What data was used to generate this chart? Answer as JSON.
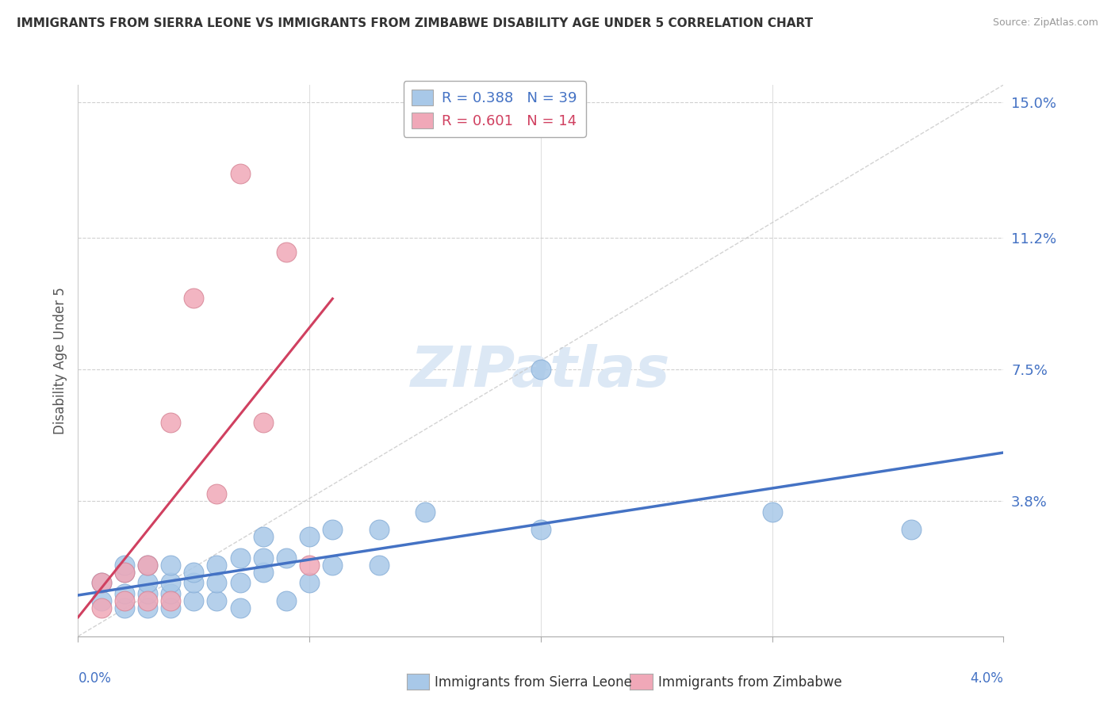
{
  "title": "IMMIGRANTS FROM SIERRA LEONE VS IMMIGRANTS FROM ZIMBABWE DISABILITY AGE UNDER 5 CORRELATION CHART",
  "source": "Source: ZipAtlas.com",
  "ylabel": "Disability Age Under 5",
  "ytick_vals": [
    0.0,
    0.038,
    0.075,
    0.112,
    0.15
  ],
  "ytick_labels": [
    "",
    "3.8%",
    "7.5%",
    "11.2%",
    "15.0%"
  ],
  "xlim": [
    0.0,
    0.04
  ],
  "ylim": [
    0.0,
    0.155
  ],
  "legend_r1": "R = 0.388",
  "legend_n1": "N = 39",
  "legend_r2": "R = 0.601",
  "legend_n2": "N = 14",
  "sierra_leone_color": "#a8c8e8",
  "zimbabwe_color": "#f0a8b8",
  "sierra_leone_line_color": "#4472c4",
  "zimbabwe_line_color": "#d04060",
  "watermark_color": "#dce8f5",
  "background_color": "#ffffff",
  "sierra_leone_x": [
    0.001,
    0.001,
    0.002,
    0.002,
    0.002,
    0.002,
    0.003,
    0.003,
    0.003,
    0.003,
    0.004,
    0.004,
    0.004,
    0.004,
    0.005,
    0.005,
    0.005,
    0.006,
    0.006,
    0.006,
    0.007,
    0.007,
    0.007,
    0.008,
    0.008,
    0.008,
    0.009,
    0.009,
    0.01,
    0.01,
    0.011,
    0.011,
    0.013,
    0.013,
    0.015,
    0.02,
    0.02,
    0.03,
    0.036
  ],
  "sierra_leone_y": [
    0.01,
    0.015,
    0.008,
    0.012,
    0.018,
    0.02,
    0.008,
    0.012,
    0.015,
    0.02,
    0.008,
    0.012,
    0.015,
    0.02,
    0.01,
    0.015,
    0.018,
    0.01,
    0.015,
    0.02,
    0.008,
    0.015,
    0.022,
    0.018,
    0.022,
    0.028,
    0.01,
    0.022,
    0.015,
    0.028,
    0.02,
    0.03,
    0.02,
    0.03,
    0.035,
    0.03,
    0.075,
    0.035,
    0.03
  ],
  "zimbabwe_x": [
    0.001,
    0.001,
    0.002,
    0.002,
    0.003,
    0.003,
    0.004,
    0.004,
    0.005,
    0.006,
    0.007,
    0.008,
    0.009,
    0.01
  ],
  "zimbabwe_y": [
    0.008,
    0.015,
    0.01,
    0.018,
    0.01,
    0.02,
    0.01,
    0.06,
    0.095,
    0.04,
    0.13,
    0.06,
    0.108,
    0.02
  ]
}
